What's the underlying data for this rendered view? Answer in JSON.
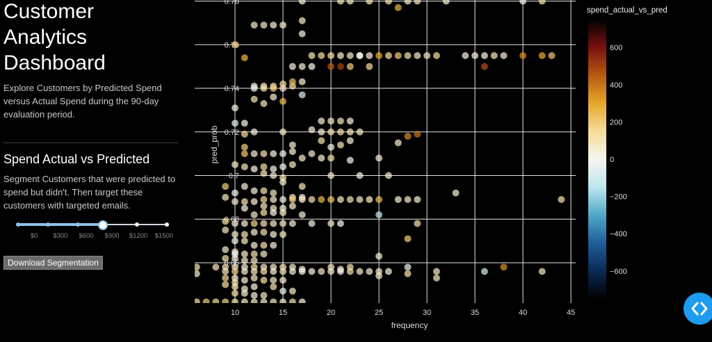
{
  "sidebar": {
    "title_lines": [
      "Customer",
      "Analytics",
      "Dashboard"
    ],
    "intro": "Explore Customers by Predicted Spend versus Actual Spend during the 90-day evaluation period.",
    "section_title": "Spend Actual vs Predicted",
    "section_desc": "Segment Customers that were predicted to spend but didn't. Then target these customers with targeted emails.",
    "slider": {
      "marks": [
        "$0",
        "$300",
        "$600",
        "$900",
        "$1200",
        "$1500"
      ],
      "selected_value": "$900",
      "accent": "#8fc2ea"
    },
    "download_label": "Download Segmentation"
  },
  "chart_data": {
    "type": "scatter",
    "xlabel": "frequency",
    "ylabel": "pred_prob",
    "xlim": [
      5.8,
      45.5
    ],
    "ylim": [
      0.6415,
      0.7805
    ],
    "x_ticks": [
      10,
      15,
      20,
      25,
      30,
      35,
      40,
      45
    ],
    "y_ticks": [
      0.66,
      0.68,
      0.7,
      0.72,
      0.74,
      0.76,
      0.78
    ],
    "y_tick_labels": [
      "0.66",
      "0.68",
      "0.7",
      "0.72",
      "0.74",
      "0.76",
      "0.78"
    ],
    "grid": true,
    "colorbar": {
      "title": "spend_actual_vs_pred",
      "range": [
        -750,
        750
      ],
      "ticks": [
        600,
        400,
        200,
        0,
        -200,
        -400,
        -600
      ],
      "tick_labels": [
        "600",
        "400",
        "200",
        "0",
        "−200",
        "−400",
        "−600"
      ],
      "colorscale": [
        "#000000",
        "#0a2a55",
        "#1f5e98",
        "#4fa8c8",
        "#bfe6ee",
        "#f5f5f0",
        "#f5dc9a",
        "#e6a72a",
        "#b65a10",
        "#7a1010",
        "#000000"
      ]
    },
    "points": [
      [
        17,
        0.78,
        60
      ],
      [
        21,
        0.78,
        100
      ],
      [
        22,
        0.78,
        90
      ],
      [
        24,
        0.78,
        110
      ],
      [
        27,
        0.777,
        280
      ],
      [
        28,
        0.78,
        70
      ],
      [
        26,
        0.78,
        80
      ],
      [
        29,
        0.78,
        110
      ],
      [
        32,
        0.78,
        60
      ],
      [
        40,
        0.78,
        20
      ],
      [
        42,
        0.78,
        120
      ],
      [
        17,
        0.771,
        80
      ],
      [
        10,
        0.76,
        200
      ],
      [
        11,
        0.754,
        280
      ],
      [
        12,
        0.769,
        70
      ],
      [
        13,
        0.769,
        90
      ],
      [
        14,
        0.769,
        60
      ],
      [
        15,
        0.769,
        40
      ],
      [
        17,
        0.765,
        30
      ],
      [
        16,
        0.75,
        40
      ],
      [
        17,
        0.75,
        60
      ],
      [
        18,
        0.755,
        100
      ],
      [
        18,
        0.75,
        20
      ],
      [
        19,
        0.755,
        150
      ],
      [
        20,
        0.755,
        130
      ],
      [
        20,
        0.75,
        450
      ],
      [
        21,
        0.755,
        60
      ],
      [
        21,
        0.75,
        500
      ],
      [
        22,
        0.755,
        80
      ],
      [
        22,
        0.75,
        200
      ],
      [
        23,
        0.755,
        20
      ],
      [
        23,
        0.755,
        -10
      ],
      [
        24,
        0.755,
        30
      ],
      [
        24,
        0.75,
        150
      ],
      [
        25,
        0.755,
        300
      ],
      [
        26,
        0.755,
        120
      ],
      [
        27,
        0.755,
        200
      ],
      [
        28,
        0.755,
        130
      ],
      [
        29,
        0.755,
        80
      ],
      [
        30,
        0.755,
        90
      ],
      [
        31,
        0.755,
        150
      ],
      [
        34,
        0.755,
        40
      ],
      [
        35,
        0.755,
        30
      ],
      [
        36,
        0.755,
        20
      ],
      [
        36,
        0.75,
        470
      ],
      [
        37,
        0.755,
        100
      ],
      [
        38,
        0.755,
        60
      ],
      [
        40,
        0.755,
        350
      ],
      [
        42,
        0.755,
        300
      ],
      [
        43,
        0.755,
        220
      ],
      [
        12,
        0.741,
        40
      ],
      [
        12,
        0.74,
        -40
      ],
      [
        13,
        0.741,
        80
      ],
      [
        13,
        0.74,
        130
      ],
      [
        14,
        0.741,
        100
      ],
      [
        14,
        0.74,
        200
      ],
      [
        15,
        0.74,
        70
      ],
      [
        15,
        0.742,
        150
      ],
      [
        16,
        0.741,
        110
      ],
      [
        16,
        0.743,
        240
      ],
      [
        17,
        0.743,
        60
      ],
      [
        12,
        0.735,
        120
      ],
      [
        13,
        0.733,
        90
      ],
      [
        14,
        0.736,
        60
      ],
      [
        15,
        0.734,
        250
      ],
      [
        17,
        0.737,
        -100
      ],
      [
        10,
        0.731,
        30
      ],
      [
        10,
        0.724,
        -60
      ],
      [
        11,
        0.724,
        20
      ],
      [
        19,
        0.725,
        60
      ],
      [
        20,
        0.725,
        90
      ],
      [
        21,
        0.725,
        110
      ],
      [
        22,
        0.725,
        40
      ],
      [
        11,
        0.719,
        150
      ],
      [
        12,
        0.72,
        40
      ],
      [
        15,
        0.72,
        70
      ],
      [
        18,
        0.721,
        40
      ],
      [
        19,
        0.72,
        30
      ],
      [
        20,
        0.72,
        100
      ],
      [
        21,
        0.72,
        120
      ],
      [
        22,
        0.72,
        80
      ],
      [
        23,
        0.72,
        70
      ],
      [
        28,
        0.718,
        350
      ],
      [
        29,
        0.719,
        400
      ],
      [
        27,
        0.715,
        80
      ],
      [
        11,
        0.713,
        200
      ],
      [
        16,
        0.714,
        60
      ],
      [
        19,
        0.716,
        120
      ],
      [
        20,
        0.713,
        30
      ],
      [
        21,
        0.714,
        110
      ],
      [
        22,
        0.716,
        60
      ],
      [
        11,
        0.71,
        220
      ],
      [
        12,
        0.71,
        60
      ],
      [
        13,
        0.71,
        120
      ],
      [
        14,
        0.71,
        30
      ],
      [
        15,
        0.71,
        -20
      ],
      [
        16,
        0.711,
        40
      ],
      [
        17,
        0.708,
        90
      ],
      [
        18,
        0.71,
        70
      ],
      [
        19,
        0.708,
        40
      ],
      [
        20,
        0.708,
        120
      ],
      [
        22,
        0.707,
        30
      ],
      [
        25,
        0.708,
        60
      ],
      [
        10,
        0.705,
        70
      ],
      [
        11,
        0.704,
        100
      ],
      [
        12,
        0.703,
        40
      ],
      [
        13,
        0.704,
        140
      ],
      [
        14,
        0.703,
        20
      ],
      [
        15,
        0.704,
        -10
      ],
      [
        16,
        0.705,
        80
      ],
      [
        13,
        0.701,
        90
      ],
      [
        14,
        0.7,
        60
      ],
      [
        15,
        0.699,
        120
      ],
      [
        20,
        0.7,
        90
      ],
      [
        23,
        0.7,
        30
      ],
      [
        26,
        0.7,
        70
      ],
      [
        9,
        0.695,
        200
      ],
      [
        9,
        0.69,
        100
      ],
      [
        10,
        0.692,
        -10
      ],
      [
        11,
        0.695,
        40
      ],
      [
        12,
        0.693,
        60
      ],
      [
        13,
        0.693,
        130
      ],
      [
        14,
        0.692,
        80
      ],
      [
        15,
        0.697,
        40
      ],
      [
        16,
        0.69,
        90
      ],
      [
        17,
        0.695,
        120
      ],
      [
        17,
        0.69,
        30
      ],
      [
        33,
        0.692,
        50
      ],
      [
        10,
        0.688,
        60
      ],
      [
        11,
        0.688,
        110
      ],
      [
        12,
        0.688,
        40
      ],
      [
        13,
        0.689,
        160
      ],
      [
        14,
        0.689,
        60
      ],
      [
        15,
        0.689,
        30
      ],
      [
        16,
        0.689,
        200
      ],
      [
        17,
        0.689,
        80
      ],
      [
        18,
        0.689,
        130
      ],
      [
        19,
        0.689,
        260
      ],
      [
        20,
        0.689,
        220
      ],
      [
        21,
        0.689,
        100
      ],
      [
        22,
        0.689,
        120
      ],
      [
        23,
        0.689,
        90
      ],
      [
        24,
        0.689,
        60
      ],
      [
        25,
        0.689,
        250
      ],
      [
        27,
        0.689,
        50
      ],
      [
        28,
        0.689,
        80
      ],
      [
        29,
        0.689,
        60
      ],
      [
        44,
        0.689,
        120
      ],
      [
        11,
        0.685,
        30
      ],
      [
        13,
        0.686,
        80
      ],
      [
        14,
        0.685,
        100
      ],
      [
        15,
        0.685,
        40
      ],
      [
        16,
        0.686,
        60
      ],
      [
        12,
        0.682,
        70
      ],
      [
        13,
        0.683,
        140
      ],
      [
        14,
        0.683,
        20
      ],
      [
        15,
        0.683,
        90
      ],
      [
        17,
        0.682,
        50
      ],
      [
        25,
        0.682,
        -150
      ],
      [
        9,
        0.679,
        150
      ],
      [
        10,
        0.678,
        60
      ],
      [
        11,
        0.678,
        40
      ],
      [
        12,
        0.678,
        180
      ],
      [
        13,
        0.678,
        120
      ],
      [
        14,
        0.678,
        70
      ],
      [
        15,
        0.678,
        90
      ],
      [
        16,
        0.678,
        60
      ],
      [
        18,
        0.678,
        30
      ],
      [
        20,
        0.678,
        80
      ],
      [
        21,
        0.678,
        10
      ],
      [
        29,
        0.678,
        120
      ],
      [
        9,
        0.675,
        110
      ],
      [
        10,
        0.673,
        70
      ],
      [
        11,
        0.673,
        100
      ],
      [
        12,
        0.674,
        60
      ],
      [
        13,
        0.674,
        130
      ],
      [
        14,
        0.673,
        40
      ],
      [
        15,
        0.673,
        80
      ],
      [
        10,
        0.67,
        20
      ],
      [
        11,
        0.67,
        90
      ],
      [
        12,
        0.668,
        60
      ],
      [
        13,
        0.668,
        110
      ],
      [
        14,
        0.668,
        40
      ],
      [
        28,
        0.671,
        200
      ],
      [
        9,
        0.666,
        70
      ],
      [
        10,
        0.665,
        90
      ],
      [
        10,
        0.664,
        -20
      ],
      [
        11,
        0.664,
        60
      ],
      [
        12,
        0.664,
        120
      ],
      [
        13,
        0.664,
        80
      ],
      [
        25,
        0.663,
        60
      ],
      [
        9,
        0.662,
        140
      ],
      [
        10,
        0.662,
        40
      ],
      [
        11,
        0.661,
        70
      ],
      [
        12,
        0.661,
        90
      ],
      [
        6,
        0.658,
        120
      ],
      [
        6,
        0.655,
        60
      ],
      [
        8,
        0.658,
        90
      ],
      [
        9,
        0.658,
        110
      ],
      [
        10,
        0.658,
        80
      ],
      [
        11,
        0.658,
        40
      ],
      [
        12,
        0.658,
        150
      ],
      [
        13,
        0.658,
        70
      ],
      [
        14,
        0.658,
        60
      ],
      [
        15,
        0.658,
        100
      ],
      [
        16,
        0.658,
        70
      ],
      [
        17,
        0.657,
        50
      ],
      [
        20,
        0.658,
        90
      ],
      [
        21,
        0.657,
        60
      ],
      [
        22,
        0.658,
        120
      ],
      [
        28,
        0.658,
        -40
      ],
      [
        38,
        0.658,
        350
      ],
      [
        9,
        0.656,
        100
      ],
      [
        10,
        0.656,
        200
      ],
      [
        11,
        0.656,
        60
      ],
      [
        12,
        0.656,
        90
      ],
      [
        13,
        0.656,
        140
      ],
      [
        14,
        0.656,
        40
      ],
      [
        15,
        0.656,
        110
      ],
      [
        16,
        0.656,
        50
      ],
      [
        17,
        0.656,
        20
      ],
      [
        18,
        0.656,
        30
      ],
      [
        19,
        0.656,
        80
      ],
      [
        20,
        0.656,
        60
      ],
      [
        21,
        0.656,
        10
      ],
      [
        22,
        0.656,
        120
      ],
      [
        23,
        0.656,
        70
      ],
      [
        24,
        0.656,
        60
      ],
      [
        25,
        0.656,
        90
      ],
      [
        26,
        0.656,
        40
      ],
      [
        31,
        0.656,
        80
      ],
      [
        36,
        0.656,
        -100
      ],
      [
        42,
        0.656,
        90
      ],
      [
        25,
        0.654,
        60
      ],
      [
        28,
        0.655,
        120
      ],
      [
        31,
        0.653,
        80
      ],
      [
        9,
        0.653,
        160
      ],
      [
        10,
        0.653,
        60
      ],
      [
        10,
        0.651,
        100
      ],
      [
        11,
        0.652,
        40
      ],
      [
        12,
        0.653,
        90
      ],
      [
        13,
        0.652,
        120
      ],
      [
        14,
        0.652,
        70
      ],
      [
        15,
        0.652,
        60
      ],
      [
        9,
        0.65,
        140
      ],
      [
        10,
        0.649,
        90
      ],
      [
        11,
        0.648,
        60
      ],
      [
        12,
        0.649,
        30
      ],
      [
        14,
        0.649,
        110
      ],
      [
        15,
        0.647,
        -40
      ],
      [
        10,
        0.646,
        120
      ],
      [
        11,
        0.646,
        60
      ],
      [
        12,
        0.645,
        40
      ],
      [
        13,
        0.645,
        90
      ],
      [
        16,
        0.647,
        80
      ],
      [
        6,
        0.642,
        120
      ],
      [
        7,
        0.642,
        200
      ],
      [
        8,
        0.642,
        160
      ],
      [
        9,
        0.642,
        180
      ],
      [
        10,
        0.642,
        110
      ],
      [
        11,
        0.642,
        60
      ],
      [
        12,
        0.642,
        80
      ],
      [
        13,
        0.642,
        60
      ],
      [
        14,
        0.642,
        90
      ],
      [
        15,
        0.642,
        70
      ],
      [
        16,
        0.642,
        120
      ],
      [
        17,
        0.642,
        40
      ]
    ]
  }
}
